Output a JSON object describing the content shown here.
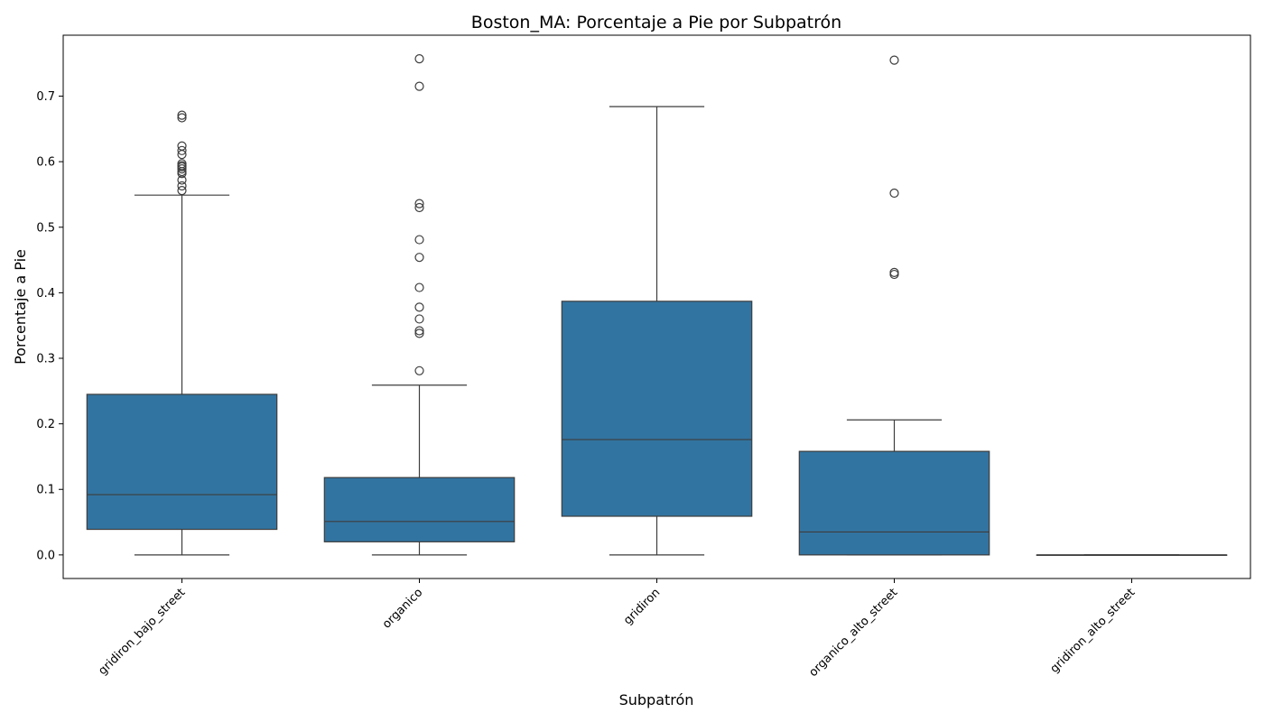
{
  "chart_data": {
    "type": "box",
    "title": "Boston_MA: Porcentaje a Pie por Subpatrón",
    "xlabel": "Subpatrón",
    "ylabel": "Porcentaje a Pie",
    "ylim": [
      -0.036,
      0.793
    ],
    "yticks": [
      0.0,
      0.1,
      0.2,
      0.3,
      0.4,
      0.5,
      0.6,
      0.7
    ],
    "ytick_labels": [
      "0.0",
      "0.1",
      "0.2",
      "0.3",
      "0.4",
      "0.5",
      "0.6",
      "0.7"
    ],
    "grid": false,
    "box_color": "#3274a1",
    "line_color": "#3d3d3d",
    "categories": [
      "gridiron_bajo_street",
      "organico",
      "gridiron",
      "organico_alto_street",
      "gridiron_alto_street"
    ],
    "boxes": [
      {
        "category": "gridiron_bajo_street",
        "whisker_low": 0.0,
        "q1": 0.039,
        "median": 0.092,
        "q3": 0.245,
        "whisker_high": 0.549,
        "outliers": [
          0.556,
          0.563,
          0.572,
          0.582,
          0.585,
          0.589,
          0.592,
          0.594,
          0.597,
          0.611,
          0.617,
          0.624,
          0.667,
          0.671
        ]
      },
      {
        "category": "organico",
        "whisker_low": 0.0,
        "q1": 0.02,
        "median": 0.051,
        "q3": 0.118,
        "whisker_high": 0.259,
        "outliers": [
          0.281,
          0.338,
          0.342,
          0.36,
          0.378,
          0.408,
          0.454,
          0.481,
          0.53,
          0.536,
          0.715,
          0.757
        ]
      },
      {
        "category": "gridiron",
        "whisker_low": 0.0,
        "q1": 0.059,
        "median": 0.176,
        "q3": 0.387,
        "whisker_high": 0.684,
        "outliers": []
      },
      {
        "category": "organico_alto_street",
        "whisker_low": 0.0,
        "q1": 0.0,
        "median": 0.035,
        "q3": 0.158,
        "whisker_high": 0.206,
        "outliers": [
          0.428,
          0.431,
          0.552,
          0.755
        ]
      },
      {
        "category": "gridiron_alto_street",
        "whisker_low": 0.0,
        "q1": 0.0,
        "median": 0.0,
        "q3": 0.0,
        "whisker_high": 0.0,
        "outliers": []
      }
    ]
  }
}
